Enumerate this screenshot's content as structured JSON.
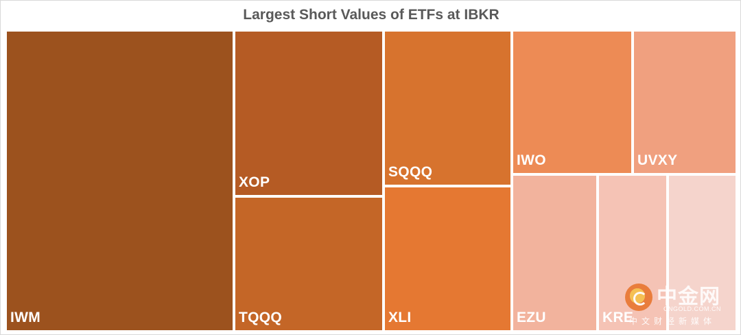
{
  "chart_data": {
    "type": "treemap",
    "title": "Largest Short Values of ETFs at IBKR",
    "tiles": [
      {
        "label": "IWM",
        "color": "#9c521e"
      },
      {
        "label": "XOP",
        "color": "#b55b24"
      },
      {
        "label": "TQQQ",
        "color": "#c46627"
      },
      {
        "label": "SQQQ",
        "color": "#d7732e"
      },
      {
        "label": "XLI",
        "color": "#e57832"
      },
      {
        "label": "IWO",
        "color": "#ed8b55"
      },
      {
        "label": "UVXY",
        "color": "#f0a07f"
      },
      {
        "label": "EZU",
        "color": "#f2b39d"
      },
      {
        "label": "KRE",
        "color": "#f5c3b5"
      },
      {
        "label": "",
        "color": "#f5d4cc"
      }
    ]
  },
  "watermark": {
    "brand": "中金网",
    "domain": "CNGOLD.COM.CN",
    "subtitle": "中文财经新媒体"
  }
}
